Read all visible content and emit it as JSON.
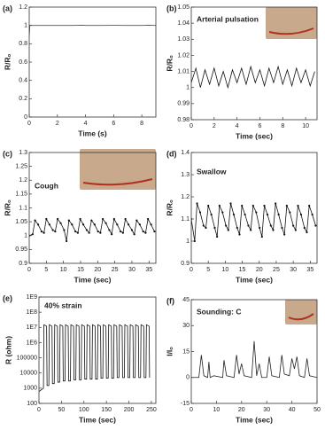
{
  "chart_data": [
    {
      "type": "line",
      "label": "(a)",
      "xlabel": "Time (s)",
      "ylabel": "R/Rₒ",
      "color": "#555555",
      "x": [
        0,
        0.05,
        1,
        2,
        3,
        3.8,
        4,
        5,
        6,
        7,
        8,
        8.5,
        9
      ],
      "values": [
        0.88,
        1.0,
        1.0,
        1.0,
        1.0,
        1.002,
        1.0,
        1.0,
        1.001,
        1.0,
        1.0,
        1.002,
        1.0
      ],
      "xlim": [
        0,
        9
      ],
      "ylim": [
        0,
        1.2
      ],
      "xticks": [
        0,
        2,
        4,
        6,
        8
      ],
      "yticks": [
        0,
        0.2,
        0.4,
        0.6,
        0.8,
        1,
        1.2
      ]
    },
    {
      "type": "line",
      "label": "(b)",
      "title": "Arterial pulsation",
      "xlabel": "Time (sec)",
      "ylabel": "R/Rₒ",
      "color": "#111111",
      "x": [
        0,
        0.4,
        0.8,
        1.2,
        1.6,
        2,
        2.4,
        2.8,
        3.2,
        3.6,
        4,
        4.4,
        4.8,
        5.2,
        5.6,
        6,
        6.4,
        6.8,
        7.2,
        7.6,
        8,
        8.4,
        8.8,
        9.2,
        9.6,
        10,
        10.4,
        10.8
      ],
      "values": [
        1.003,
        1.012,
        1.0,
        1.011,
        1.002,
        1.012,
        1.001,
        1.01,
        1.0,
        1.011,
        1.003,
        1.012,
        1.002,
        1.013,
        1.003,
        1.011,
        1.001,
        1.012,
        1.003,
        1.013,
        1.002,
        1.011,
        1.001,
        1.012,
        1.003,
        1.011,
        1.001,
        1.01
      ],
      "xlim": [
        0,
        11
      ],
      "ylim": [
        0.98,
        1.05
      ],
      "xticks": [
        0,
        2,
        4,
        6,
        8,
        10
      ],
      "yticks": [
        0.98,
        0.99,
        1,
        1.01,
        1.02,
        1.03,
        1.04,
        1.05
      ]
    },
    {
      "type": "line",
      "label": "(c)",
      "title": "Cough",
      "xlabel": "Time (sec)",
      "ylabel": "R/Rₒ",
      "color": "#111111",
      "markers": true,
      "x": [
        0,
        1,
        1.7,
        2.6,
        3.6,
        4.3,
        5,
        5.9,
        6.9,
        7.6,
        8.3,
        9.2,
        10.2,
        10.9,
        11.6,
        12.5,
        13.5,
        14.2,
        14.9,
        15.8,
        16.8,
        17.5,
        18.2,
        19.1,
        20.1,
        20.8,
        21.5,
        22.4,
        23.4,
        24.1,
        24.8,
        25.7,
        26.7,
        27.4,
        28.1,
        29,
        30,
        30.7,
        31.4,
        32.3,
        33.3,
        34,
        34.7,
        35.6,
        36.6
      ],
      "values": [
        1.0,
        1.005,
        1.055,
        1.04,
        1.015,
        1.01,
        1.06,
        1.04,
        1.02,
        1.015,
        1.06,
        1.045,
        1.02,
        0.98,
        1.055,
        1.04,
        1.015,
        1.01,
        1.06,
        1.04,
        1.02,
        1.01,
        1.055,
        1.04,
        1.015,
        1.01,
        1.06,
        1.045,
        1.02,
        1.005,
        1.06,
        1.04,
        1.015,
        1.01,
        1.06,
        1.04,
        1.02,
        1.005,
        1.055,
        1.04,
        1.015,
        1.01,
        1.06,
        1.04,
        1.015
      ],
      "xlim": [
        0,
        37
      ],
      "ylim": [
        0.9,
        1.3
      ],
      "xticks": [
        0,
        5,
        10,
        15,
        20,
        25,
        30,
        35
      ],
      "yticks": [
        0.9,
        0.95,
        1,
        1.05,
        1.1,
        1.15,
        1.2,
        1.25,
        1.3
      ]
    },
    {
      "type": "line",
      "label": "(d)",
      "title": "Swallow",
      "xlabel": "Time (sec)",
      "ylabel": "R/Rₒ",
      "color": "#111111",
      "markers": true,
      "x": [
        0,
        1,
        1.7,
        2.6,
        3.6,
        4.3,
        5,
        5.9,
        6.9,
        7.6,
        8.3,
        9.2,
        10.2,
        10.9,
        11.6,
        12.5,
        13.5,
        14.2,
        14.9,
        15.8,
        16.8,
        17.5,
        18.2,
        19.1,
        20.1,
        20.8,
        21.5,
        22.4,
        23.4,
        24.1,
        24.8,
        25.7,
        26.7,
        27.4,
        28.1,
        29,
        30,
        30.7,
        31.4,
        32.3,
        33.3,
        34,
        34.7,
        35.6,
        36.6
      ],
      "values": [
        1.1,
        1.0,
        1.17,
        1.13,
        1.07,
        1.06,
        1.16,
        1.12,
        1.06,
        1.02,
        1.16,
        1.13,
        1.07,
        1.05,
        1.17,
        1.12,
        1.06,
        1.03,
        1.16,
        1.12,
        1.07,
        1.05,
        1.16,
        1.13,
        1.06,
        1.02,
        1.16,
        1.12,
        1.07,
        1.05,
        1.17,
        1.12,
        1.06,
        1.03,
        1.16,
        1.13,
        1.07,
        1.05,
        1.16,
        1.12,
        1.06,
        1.04,
        1.16,
        1.12,
        1.07
      ],
      "xlim": [
        0,
        37
      ],
      "ylim": [
        0.9,
        1.4
      ],
      "xticks": [
        0,
        5,
        10,
        15,
        20,
        25,
        30,
        35
      ],
      "yticks": [
        0.9,
        1,
        1.1,
        1.2,
        1.3,
        1.4
      ]
    },
    {
      "type": "line",
      "label": "(e)",
      "title": "40% strain",
      "xlabel": "Time (sec)",
      "ylabel": "R (ohm)",
      "color": "#111111",
      "log_y": true,
      "x": [
        0,
        10,
        11,
        17,
        18,
        22,
        23,
        29,
        30,
        34,
        35,
        41,
        42,
        46,
        47,
        53,
        54,
        58,
        59,
        65,
        66,
        70,
        71,
        77,
        78,
        82,
        83,
        89,
        90,
        94,
        95,
        101,
        102,
        106,
        107,
        113,
        114,
        118,
        119,
        125,
        126,
        130,
        131,
        137,
        138,
        142,
        143,
        149,
        150,
        154,
        155,
        161,
        162,
        166,
        167,
        173,
        174,
        178,
        179,
        185,
        186,
        190,
        191,
        197,
        198,
        202,
        203,
        209,
        210,
        214,
        215,
        221,
        222,
        226,
        227,
        233,
        234,
        238,
        239,
        245,
        246
      ],
      "values": [
        600,
        1000,
        15000000,
        12000000,
        1500,
        1500,
        15000000,
        12000000,
        2000,
        2000,
        15000000,
        12000000,
        2500,
        2500,
        15000000,
        12000000,
        3000,
        3000,
        15000000,
        12000000,
        3000,
        3000,
        15000000,
        12000000,
        3500,
        3500,
        15000000,
        12000000,
        3500,
        3500,
        15000000,
        12000000,
        4000,
        4000,
        15000000,
        12000000,
        4000,
        4000,
        15000000,
        12000000,
        4000,
        4000,
        15000000,
        12000000,
        4500,
        4500,
        15000000,
        12000000,
        4500,
        4500,
        15000000,
        12000000,
        4500,
        4500,
        15000000,
        12000000,
        5000,
        5000,
        15000000,
        12000000,
        5000,
        5000,
        15000000,
        12000000,
        5000,
        5000,
        15000000,
        12000000,
        5000,
        5000,
        15000000,
        12000000,
        5000,
        5000,
        15000000,
        12000000,
        5000,
        5000,
        15000000,
        12000000,
        5000
      ],
      "xlim": [
        0,
        260
      ],
      "ylim": [
        100,
        1000000000
      ],
      "xticks": [
        0,
        50,
        100,
        150,
        200,
        250
      ],
      "yticks": [
        100,
        1000,
        10000,
        100000,
        {
          "value": 1000000,
          "label": "1E6"
        },
        {
          "value": 10000000,
          "label": "1E7"
        },
        {
          "value": 100000000,
          "label": "1E8"
        },
        {
          "value": 1000000000,
          "label": "1E9"
        }
      ]
    },
    {
      "type": "line",
      "label": "(f)",
      "title": "Sounding: C",
      "xlabel": "Time (sec)",
      "ylabel": "I/Iₒ",
      "color": "#222222",
      "x": [
        0,
        3,
        4,
        5,
        6.5,
        7,
        7.5,
        9,
        12.5,
        13,
        14,
        17,
        18,
        19,
        20,
        21,
        24,
        25,
        26,
        27,
        28,
        30,
        31,
        32,
        35,
        36,
        37,
        39,
        40,
        41,
        42,
        43,
        45,
        46,
        47,
        50
      ],
      "values": [
        0,
        0,
        13,
        1,
        0,
        9,
        0,
        1,
        0,
        10,
        1,
        0,
        13,
        2,
        8,
        1,
        0,
        21,
        1,
        8,
        0,
        0,
        12,
        1,
        0,
        13,
        2,
        1,
        11,
        5,
        12,
        1,
        0,
        11,
        1,
        0
      ],
      "xlim": [
        0,
        50
      ],
      "ylim": [
        -15,
        45
      ],
      "xticks": [
        0,
        10,
        20,
        30,
        40,
        50
      ],
      "yticks": [
        -15,
        0,
        15,
        30,
        45
      ]
    }
  ]
}
